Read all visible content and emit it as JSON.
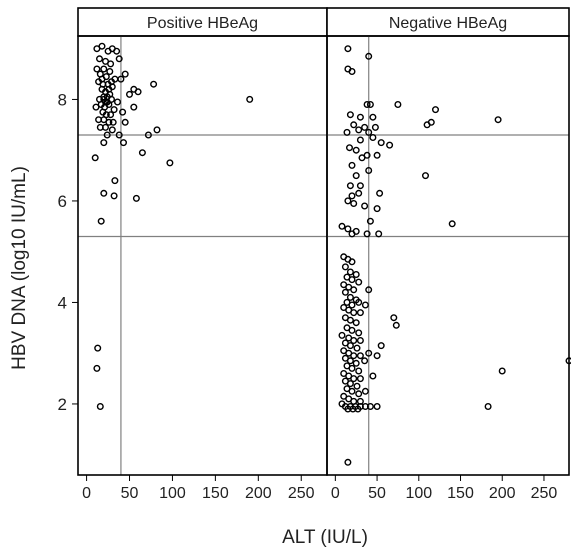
{
  "chart_data": {
    "type": "scatter",
    "xlabel": "ALT (IU/L)",
    "ylabel": "HBV DNA (log10 IU/mL)",
    "xlim": [
      -10,
      280
    ],
    "ylim": [
      0.6,
      9.25
    ],
    "x_ticks": [
      0,
      50,
      100,
      150,
      200,
      250
    ],
    "y_ticks": [
      2,
      4,
      6,
      8
    ],
    "grid": false,
    "reference_lines": {
      "x": [
        40
      ],
      "y": [
        7.3,
        5.3
      ]
    },
    "panels": [
      {
        "title": "Positive HBeAg",
        "points": [
          [
            12,
            9.0
          ],
          [
            18,
            9.05
          ],
          [
            25,
            8.95
          ],
          [
            30,
            9.0
          ],
          [
            35,
            8.95
          ],
          [
            15,
            8.8
          ],
          [
            22,
            8.75
          ],
          [
            28,
            8.7
          ],
          [
            38,
            8.8
          ],
          [
            12,
            8.6
          ],
          [
            20,
            8.6
          ],
          [
            27,
            8.55
          ],
          [
            45,
            8.5
          ],
          [
            16,
            8.5
          ],
          [
            23,
            8.45
          ],
          [
            33,
            8.4
          ],
          [
            40,
            8.4
          ],
          [
            14,
            8.35
          ],
          [
            19,
            8.3
          ],
          [
            25,
            8.3
          ],
          [
            30,
            8.25
          ],
          [
            55,
            8.2
          ],
          [
            78,
            8.3
          ],
          [
            18,
            8.2
          ],
          [
            22,
            8.15
          ],
          [
            27,
            8.1
          ],
          [
            50,
            8.1
          ],
          [
            60,
            8.15
          ],
          [
            15,
            8.0
          ],
          [
            20,
            8.0
          ],
          [
            24,
            7.95
          ],
          [
            29,
            8.0
          ],
          [
            36,
            7.95
          ],
          [
            17,
            7.9
          ],
          [
            21,
            7.85
          ],
          [
            26,
            7.9
          ],
          [
            32,
            7.8
          ],
          [
            11,
            7.85
          ],
          [
            19,
            7.75
          ],
          [
            23,
            7.7
          ],
          [
            28,
            7.7
          ],
          [
            42,
            7.75
          ],
          [
            55,
            7.85
          ],
          [
            14,
            7.6
          ],
          [
            20,
            7.6
          ],
          [
            26,
            7.55
          ],
          [
            31,
            7.55
          ],
          [
            45,
            7.55
          ],
          [
            16,
            7.45
          ],
          [
            22,
            7.45
          ],
          [
            30,
            7.4
          ],
          [
            82,
            7.4
          ],
          [
            24,
            7.3
          ],
          [
            38,
            7.3
          ],
          [
            72,
            7.3
          ],
          [
            20,
            7.15
          ],
          [
            43,
            7.15
          ],
          [
            65,
            6.95
          ],
          [
            10,
            6.85
          ],
          [
            97,
            6.75
          ],
          [
            33,
            6.4
          ],
          [
            20,
            6.15
          ],
          [
            32,
            6.1
          ],
          [
            58,
            6.05
          ],
          [
            17,
            5.6
          ],
          [
            13,
            3.1
          ],
          [
            12,
            2.7
          ],
          [
            16,
            1.95
          ],
          [
            190,
            8.0
          ],
          [
            20,
            8.05
          ],
          [
            26,
            8.2
          ],
          [
            29,
            8.35
          ],
          [
            18,
            8.4
          ],
          [
            24,
            8.05
          ],
          [
            22,
            7.95
          ]
        ]
      },
      {
        "title": "Negative HBeAg",
        "points": [
          [
            15,
            9.0
          ],
          [
            40,
            8.85
          ],
          [
            15,
            8.6
          ],
          [
            20,
            8.55
          ],
          [
            38,
            7.9
          ],
          [
            42,
            7.9
          ],
          [
            75,
            7.9
          ],
          [
            120,
            7.8
          ],
          [
            18,
            7.7
          ],
          [
            30,
            7.65
          ],
          [
            45,
            7.65
          ],
          [
            115,
            7.55
          ],
          [
            110,
            7.5
          ],
          [
            195,
            7.6
          ],
          [
            22,
            7.5
          ],
          [
            35,
            7.45
          ],
          [
            48,
            7.45
          ],
          [
            28,
            7.4
          ],
          [
            40,
            7.35
          ],
          [
            14,
            7.35
          ],
          [
            30,
            7.2
          ],
          [
            45,
            7.25
          ],
          [
            55,
            7.15
          ],
          [
            65,
            7.1
          ],
          [
            17,
            7.05
          ],
          [
            25,
            7.0
          ],
          [
            38,
            6.9
          ],
          [
            50,
            6.9
          ],
          [
            32,
            6.85
          ],
          [
            20,
            6.7
          ],
          [
            40,
            6.6
          ],
          [
            25,
            6.5
          ],
          [
            108,
            6.5
          ],
          [
            18,
            6.3
          ],
          [
            30,
            6.3
          ],
          [
            20,
            6.1
          ],
          [
            28,
            6.15
          ],
          [
            53,
            6.15
          ],
          [
            15,
            6.0
          ],
          [
            22,
            5.95
          ],
          [
            35,
            5.9
          ],
          [
            50,
            5.85
          ],
          [
            42,
            5.6
          ],
          [
            140,
            5.55
          ],
          [
            8,
            5.5
          ],
          [
            15,
            5.45
          ],
          [
            25,
            5.4
          ],
          [
            20,
            5.35
          ],
          [
            38,
            5.35
          ],
          [
            52,
            5.35
          ],
          [
            10,
            4.9
          ],
          [
            15,
            4.85
          ],
          [
            20,
            4.8
          ],
          [
            12,
            4.7
          ],
          [
            18,
            4.6
          ],
          [
            25,
            4.55
          ],
          [
            14,
            4.5
          ],
          [
            20,
            4.45
          ],
          [
            28,
            4.4
          ],
          [
            10,
            4.35
          ],
          [
            16,
            4.3
          ],
          [
            22,
            4.25
          ],
          [
            40,
            4.25
          ],
          [
            12,
            4.2
          ],
          [
            18,
            4.1
          ],
          [
            25,
            4.05
          ],
          [
            14,
            4.0
          ],
          [
            20,
            3.95
          ],
          [
            28,
            4.0
          ],
          [
            36,
            3.95
          ],
          [
            10,
            3.9
          ],
          [
            16,
            3.85
          ],
          [
            22,
            3.8
          ],
          [
            30,
            3.8
          ],
          [
            12,
            3.7
          ],
          [
            18,
            3.65
          ],
          [
            25,
            3.6
          ],
          [
            70,
            3.7
          ],
          [
            73,
            3.55
          ],
          [
            14,
            3.5
          ],
          [
            20,
            3.45
          ],
          [
            28,
            3.4
          ],
          [
            8,
            3.35
          ],
          [
            16,
            3.3
          ],
          [
            22,
            3.25
          ],
          [
            30,
            3.25
          ],
          [
            12,
            3.2
          ],
          [
            18,
            3.15
          ],
          [
            26,
            3.1
          ],
          [
            55,
            3.15
          ],
          [
            10,
            3.05
          ],
          [
            16,
            3.0
          ],
          [
            22,
            2.95
          ],
          [
            30,
            2.95
          ],
          [
            40,
            3.0
          ],
          [
            50,
            2.95
          ],
          [
            12,
            2.9
          ],
          [
            18,
            2.85
          ],
          [
            25,
            2.8
          ],
          [
            35,
            2.85
          ],
          [
            14,
            2.75
          ],
          [
            20,
            2.7
          ],
          [
            28,
            2.65
          ],
          [
            10,
            2.6
          ],
          [
            16,
            2.55
          ],
          [
            22,
            2.5
          ],
          [
            30,
            2.5
          ],
          [
            45,
            2.55
          ],
          [
            12,
            2.45
          ],
          [
            18,
            2.4
          ],
          [
            26,
            2.35
          ],
          [
            14,
            2.3
          ],
          [
            20,
            2.25
          ],
          [
            28,
            2.2
          ],
          [
            36,
            2.25
          ],
          [
            10,
            2.15
          ],
          [
            16,
            2.1
          ],
          [
            22,
            2.05
          ],
          [
            30,
            2.05
          ],
          [
            8,
            2.0
          ],
          [
            12,
            1.95
          ],
          [
            18,
            1.95
          ],
          [
            24,
            1.95
          ],
          [
            30,
            1.95
          ],
          [
            36,
            1.95
          ],
          [
            42,
            1.95
          ],
          [
            50,
            1.95
          ],
          [
            15,
            1.9
          ],
          [
            21,
            1.9
          ],
          [
            27,
            1.9
          ],
          [
            183,
            1.95
          ],
          [
            200,
            2.65
          ],
          [
            280,
            2.85
          ],
          [
            15,
            0.85
          ]
        ]
      }
    ]
  }
}
